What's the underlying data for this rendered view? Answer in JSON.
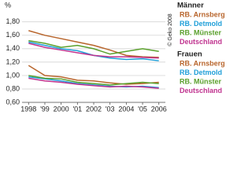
{
  "chart_data": {
    "type": "line",
    "y_label": "%",
    "credit": "© Geko 2008",
    "x": [
      1998,
      1999,
      2000,
      2001,
      2002,
      2003,
      2004,
      2005,
      2006
    ],
    "xlim": [
      1997.6,
      2006.4
    ],
    "xticks": [
      1998,
      {
        "value": 1999,
        "label": "'99"
      },
      2000,
      {
        "value": 2001,
        "label": "'01"
      },
      2002,
      {
        "value": 2003,
        "label": "'03"
      },
      2004,
      {
        "value": 2005,
        "label": "'05"
      },
      2006
    ],
    "ylim": [
      0.6,
      1.95
    ],
    "yticks": [
      {
        "value": 0.6,
        "label": "0,60"
      },
      {
        "value": 0.8,
        "label": "0,80"
      },
      {
        "value": 1.0,
        "label": "1,00"
      },
      {
        "value": 1.2,
        "label": "1,20"
      },
      {
        "value": 1.4,
        "label": "1,40"
      },
      {
        "value": 1.6,
        "label": "1,60"
      },
      {
        "value": 1.8,
        "label": "1,80"
      }
    ],
    "grid": true,
    "groups": [
      {
        "name": "Männer",
        "series": [
          {
            "name": "RB. Arnsberg",
            "color": "#b8652c",
            "values": [
              1.67,
              1.6,
              1.55,
              1.5,
              1.45,
              1.38,
              1.3,
              1.28,
              1.27
            ]
          },
          {
            "name": "RB. Detmold",
            "color": "#1f9fd8",
            "values": [
              1.5,
              1.45,
              1.4,
              1.37,
              1.3,
              1.26,
              1.24,
              1.25,
              1.22
            ]
          },
          {
            "name": "RB. Münster",
            "color": "#5aa02c",
            "values": [
              1.52,
              1.48,
              1.42,
              1.45,
              1.4,
              1.32,
              1.36,
              1.4,
              1.36
            ]
          },
          {
            "name": "Deutschland",
            "color": "#c0338f",
            "values": [
              1.48,
              1.42,
              1.38,
              1.34,
              1.3,
              1.28,
              1.28,
              1.27,
              1.26
            ]
          }
        ]
      },
      {
        "name": "Frauen",
        "series": [
          {
            "name": "RB. Arnsberg",
            "color": "#b8652c",
            "values": [
              1.15,
              1.0,
              0.98,
              0.93,
              0.92,
              0.89,
              0.87,
              0.88,
              0.9
            ]
          },
          {
            "name": "RB. Detmold",
            "color": "#1f9fd8",
            "values": [
              0.98,
              0.95,
              0.92,
              0.88,
              0.86,
              0.84,
              0.83,
              0.84,
              0.82
            ]
          },
          {
            "name": "RB. Münster",
            "color": "#5aa02c",
            "values": [
              1.0,
              0.96,
              0.95,
              0.9,
              0.88,
              0.86,
              0.88,
              0.9,
              0.88
            ]
          },
          {
            "name": "Deutschland",
            "color": "#c0338f",
            "values": [
              0.96,
              0.92,
              0.9,
              0.87,
              0.85,
              0.83,
              0.84,
              0.83,
              0.81
            ]
          }
        ]
      }
    ]
  }
}
